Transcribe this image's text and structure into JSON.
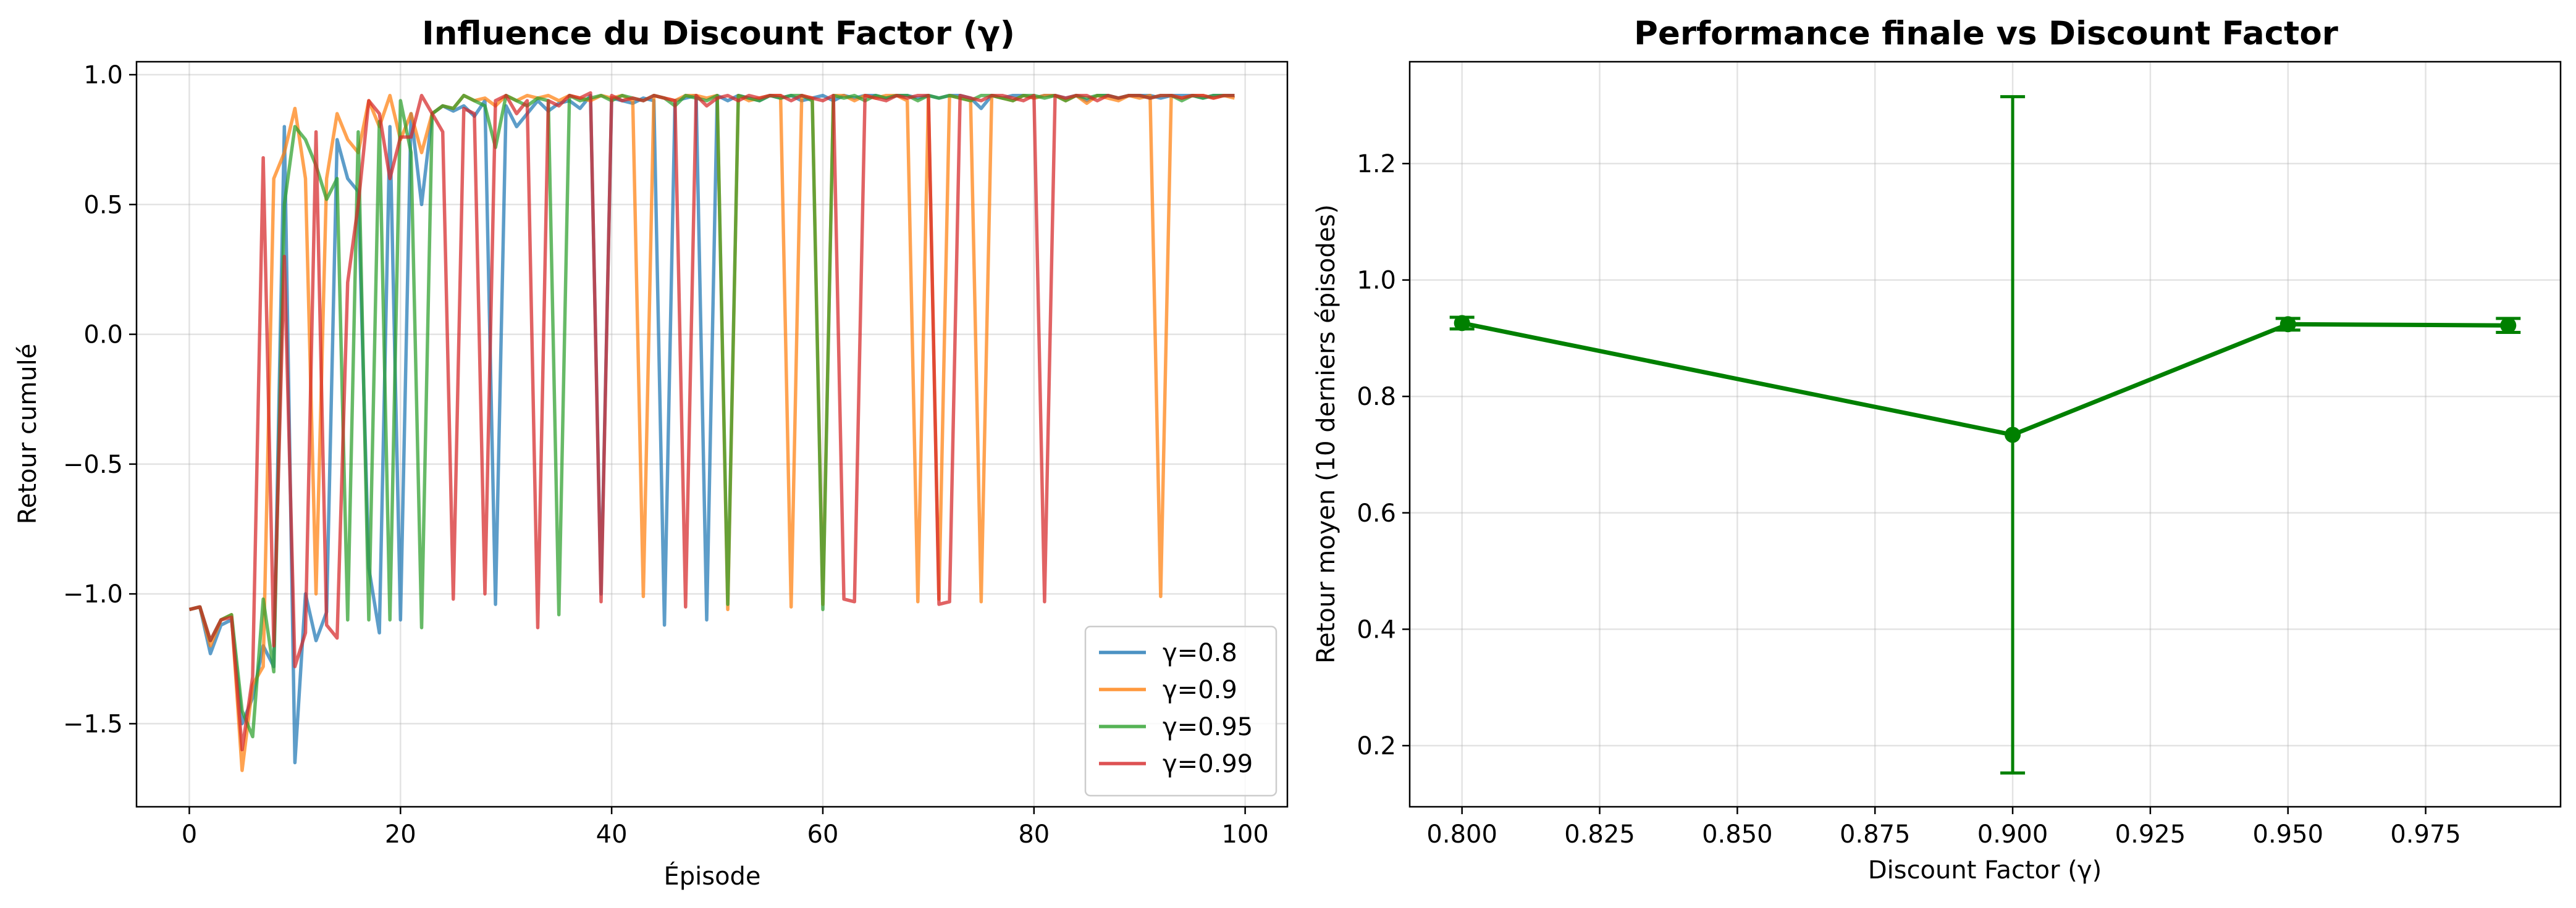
{
  "chart_data": [
    {
      "type": "line",
      "title": "Influence du Discount Factor (γ)",
      "xlabel": "Épisode",
      "ylabel": "Retour cumulé",
      "xlim": [
        -5,
        104
      ],
      "ylim": [
        -1.82,
        1.05
      ],
      "x_ticks": [
        0,
        20,
        40,
        60,
        80,
        100
      ],
      "x_tick_labels": [
        "0",
        "20",
        "40",
        "60",
        "80",
        "100"
      ],
      "y_ticks": [
        -1.5,
        -1.0,
        -0.5,
        0.0,
        0.5,
        1.0
      ],
      "y_tick_labels": [
        "−1.5",
        "−1.0",
        "−0.5",
        "0.0",
        "0.5",
        "1.0"
      ],
      "grid": true,
      "legend_position": "lower-right",
      "series": [
        {
          "name": "γ=0.8",
          "color": "#1f77b4",
          "values": [
            -1.06,
            -1.05,
            -1.23,
            -1.12,
            -1.1,
            -1.5,
            -1.4,
            -1.2,
            -1.28,
            0.8,
            -1.65,
            -1.0,
            -1.18,
            -1.07,
            0.75,
            0.6,
            0.55,
            -0.9,
            -1.15,
            0.8,
            -1.1,
            0.85,
            0.5,
            0.85,
            0.88,
            0.86,
            0.88,
            0.84,
            0.9,
            -1.04,
            0.88,
            0.8,
            0.85,
            0.9,
            0.86,
            0.89,
            0.9,
            0.87,
            0.92,
            -1.0,
            0.91,
            0.9,
            0.89,
            0.91,
            0.9,
            -1.12,
            0.9,
            0.91,
            0.92,
            -1.1,
            0.92,
            0.9,
            0.92,
            0.91,
            0.9,
            0.92,
            0.91,
            0.92,
            0.9,
            0.91,
            0.92,
            0.9,
            0.92,
            0.91,
            0.92,
            0.92,
            0.91,
            0.92,
            0.92,
            0.91,
            0.92,
            0.91,
            0.92,
            0.92,
            0.91,
            0.87,
            0.92,
            0.91,
            0.92,
            0.92,
            0.91,
            0.92,
            0.92,
            0.91,
            0.92,
            0.9,
            0.92,
            0.92,
            0.91,
            0.92,
            0.92,
            0.92,
            0.91,
            0.92,
            0.92,
            0.92,
            0.91,
            0.92,
            0.92,
            0.92
          ]
        },
        {
          "name": "γ=0.9",
          "color": "#ff7f0e",
          "values": [
            -1.06,
            -1.05,
            -1.2,
            -1.1,
            -1.08,
            -1.68,
            -1.35,
            -1.28,
            0.6,
            0.7,
            0.87,
            0.6,
            -1.0,
            0.6,
            0.85,
            0.75,
            0.7,
            0.9,
            0.8,
            0.92,
            0.75,
            0.85,
            0.7,
            0.85,
            0.88,
            0.87,
            0.92,
            0.9,
            0.91,
            0.88,
            0.92,
            0.9,
            0.92,
            0.91,
            0.92,
            0.9,
            0.92,
            0.91,
            0.9,
            0.92,
            0.91,
            0.92,
            0.9,
            -1.01,
            0.92,
            0.91,
            0.9,
            0.92,
            0.92,
            0.91,
            0.92,
            -1.06,
            0.92,
            0.9,
            0.91,
            0.92,
            0.92,
            -1.05,
            0.92,
            0.91,
            -1.04,
            0.92,
            0.92,
            0.9,
            0.92,
            0.91,
            0.92,
            0.92,
            0.9,
            -1.03,
            0.92,
            -1.02,
            0.92,
            0.91,
            0.9,
            -1.03,
            0.92,
            0.91,
            0.9,
            0.92,
            0.91,
            0.92,
            0.92,
            0.9,
            0.92,
            0.89,
            0.92,
            0.91,
            0.9,
            0.92,
            0.91,
            0.92,
            -1.01,
            0.92,
            0.91,
            0.92,
            0.92,
            0.91,
            0.92,
            0.91
          ]
        },
        {
          "name": "γ=0.95",
          "color": "#2ca02c",
          "values": [
            -1.06,
            -1.05,
            -1.18,
            -1.1,
            -1.08,
            -1.45,
            -1.55,
            -1.02,
            -1.3,
            0.5,
            0.8,
            0.75,
            0.65,
            0.52,
            0.6,
            -1.1,
            0.78,
            -1.1,
            0.82,
            -1.1,
            0.9,
            0.7,
            -1.13,
            0.85,
            0.88,
            0.87,
            0.92,
            0.9,
            0.88,
            0.72,
            0.92,
            0.9,
            0.88,
            0.91,
            0.9,
            -1.08,
            0.92,
            0.9,
            0.91,
            0.92,
            0.9,
            0.92,
            0.91,
            0.9,
            0.92,
            0.91,
            0.88,
            0.92,
            0.91,
            0.9,
            0.92,
            -1.04,
            0.92,
            0.91,
            0.9,
            0.92,
            0.91,
            0.92,
            0.92,
            0.9,
            -1.06,
            0.92,
            0.91,
            0.92,
            0.9,
            0.92,
            0.91,
            0.92,
            0.92,
            0.9,
            0.92,
            0.91,
            0.92,
            0.91,
            0.9,
            0.92,
            0.92,
            0.91,
            0.9,
            0.92,
            0.92,
            0.91,
            0.92,
            0.9,
            0.92,
            0.91,
            0.92,
            0.92,
            0.91,
            0.92,
            0.92,
            0.91,
            0.92,
            0.92,
            0.9,
            0.92,
            0.91,
            0.92,
            0.92,
            0.92
          ]
        },
        {
          "name": "γ=0.99",
          "color": "#d62728",
          "values": [
            -1.06,
            -1.05,
            -1.18,
            -1.1,
            -1.09,
            -1.6,
            -1.32,
            0.68,
            -1.2,
            0.3,
            -1.28,
            -1.15,
            0.78,
            -1.12,
            -1.17,
            0.2,
            0.5,
            0.9,
            0.85,
            0.6,
            0.76,
            0.76,
            0.92,
            0.85,
            0.78,
            -1.02,
            0.87,
            0.85,
            -1.0,
            0.9,
            0.92,
            0.85,
            0.9,
            -1.13,
            0.9,
            0.88,
            0.92,
            0.91,
            0.93,
            -1.03,
            0.92,
            0.9,
            0.91,
            0.9,
            0.92,
            0.91,
            0.9,
            -1.05,
            0.92,
            0.88,
            0.91,
            0.92,
            0.9,
            0.92,
            0.91,
            0.92,
            0.92,
            0.9,
            0.92,
            0.91,
            0.9,
            0.92,
            -1.02,
            -1.03,
            0.92,
            0.91,
            0.9,
            0.92,
            0.91,
            0.92,
            0.92,
            -1.04,
            -1.03,
            0.92,
            0.91,
            0.9,
            0.92,
            0.92,
            0.91,
            0.9,
            0.92,
            -1.03,
            0.92,
            0.91,
            0.92,
            0.92,
            0.9,
            0.92,
            0.91,
            0.92,
            0.92,
            0.91,
            0.92,
            0.92,
            0.91,
            0.92,
            0.92,
            0.91,
            0.92,
            0.92
          ]
        }
      ]
    },
    {
      "type": "line",
      "title": "Performance finale vs Discount Factor",
      "xlabel": "Discount Factor (γ)",
      "ylabel": "Retour moyen (10 derniers épisodes)",
      "xlim": [
        0.7905,
        0.9995
      ],
      "ylim": [
        0.095,
        1.375
      ],
      "x_ticks": [
        0.8,
        0.825,
        0.85,
        0.875,
        0.9,
        0.925,
        0.95,
        0.975
      ],
      "x_tick_labels": [
        "0.800",
        "0.825",
        "0.850",
        "0.875",
        "0.900",
        "0.925",
        "0.950",
        "0.975"
      ],
      "y_ticks": [
        0.2,
        0.4,
        0.6,
        0.8,
        1.0,
        1.2
      ],
      "y_tick_labels": [
        "0.2",
        "0.4",
        "0.6",
        "0.8",
        "1.0",
        "1.2"
      ],
      "grid": true,
      "color": "#008000",
      "x": [
        0.8,
        0.9,
        0.95,
        0.99
      ],
      "y": [
        0.926,
        0.734,
        0.924,
        0.922
      ],
      "error": [
        0.01,
        0.581,
        0.01,
        0.012
      ]
    }
  ]
}
